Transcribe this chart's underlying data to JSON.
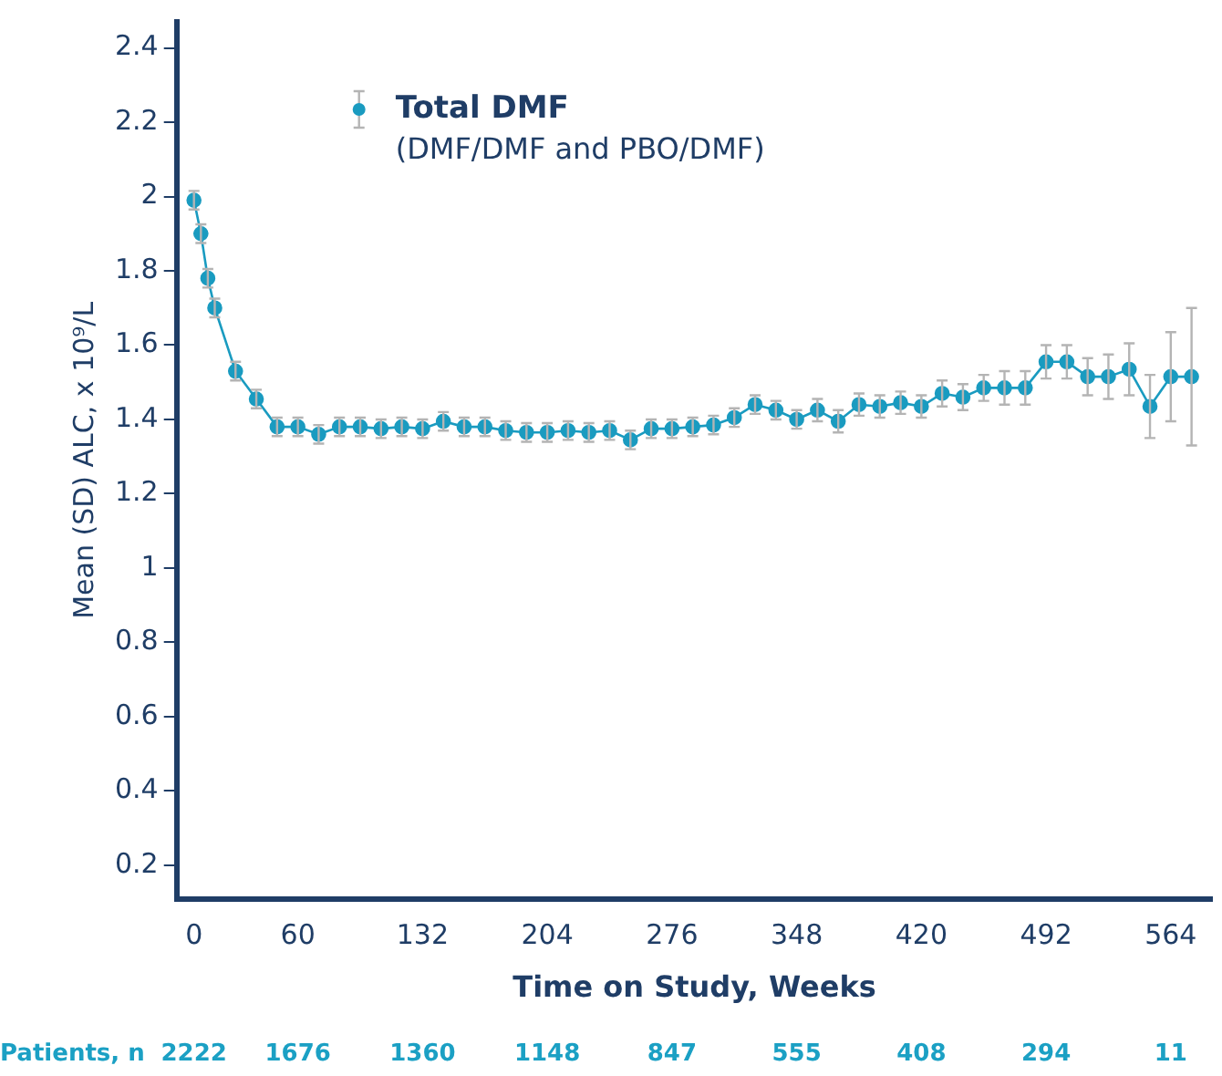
{
  "chart_data": {
    "type": "line",
    "xlabel": "Time on Study, Weeks",
    "ylabel": "Mean (SD) ALC, x 10⁹/L",
    "x": [
      0,
      4,
      8,
      12,
      24,
      36,
      48,
      60,
      72,
      84,
      96,
      108,
      120,
      132,
      144,
      156,
      168,
      180,
      192,
      204,
      216,
      228,
      240,
      252,
      264,
      276,
      288,
      300,
      312,
      324,
      336,
      348,
      360,
      372,
      384,
      396,
      408,
      420,
      432,
      444,
      456,
      468,
      480,
      492,
      504,
      516,
      528,
      540,
      552,
      564,
      576
    ],
    "series": [
      {
        "name": "Total DMF",
        "color": "#1a9bc0",
        "values": [
          1.99,
          1.9,
          1.78,
          1.7,
          1.53,
          1.455,
          1.38,
          1.38,
          1.36,
          1.38,
          1.38,
          1.375,
          1.38,
          1.375,
          1.395,
          1.38,
          1.38,
          1.37,
          1.365,
          1.365,
          1.37,
          1.365,
          1.37,
          1.345,
          1.375,
          1.375,
          1.38,
          1.385,
          1.405,
          1.44,
          1.425,
          1.4,
          1.425,
          1.395,
          1.44,
          1.435,
          1.445,
          1.435,
          1.47,
          1.46,
          1.485,
          1.485,
          1.485,
          1.555,
          1.555,
          1.515,
          1.515,
          1.535,
          1.435,
          1.515,
          1.515
        ],
        "errors": [
          0.025,
          0.025,
          0.025,
          0.025,
          0.025,
          0.025,
          0.025,
          0.025,
          0.025,
          0.025,
          0.025,
          0.025,
          0.025,
          0.025,
          0.025,
          0.025,
          0.025,
          0.025,
          0.025,
          0.025,
          0.025,
          0.025,
          0.025,
          0.025,
          0.025,
          0.025,
          0.025,
          0.025,
          0.025,
          0.025,
          0.025,
          0.025,
          0.03,
          0.03,
          0.03,
          0.03,
          0.03,
          0.03,
          0.035,
          0.035,
          0.035,
          0.045,
          0.045,
          0.045,
          0.045,
          0.05,
          0.06,
          0.07,
          0.085,
          0.12,
          0.185
        ]
      }
    ],
    "annotations": [
      "(DMF/DMF and PBO/DMF)",
      "Patients, n",
      "2222",
      "1676",
      "1360",
      "1148",
      "847",
      "555",
      "408",
      "294",
      "11"
    ],
    "xlim": [
      -10,
      588
    ],
    "xticks": [
      0,
      60,
      132,
      204,
      276,
      348,
      420,
      492,
      564
    ],
    "ylim": [
      0.11,
      2.47
    ],
    "yticks": [
      0.2,
      0.4,
      0.6,
      0.8,
      1.0,
      1.2,
      1.4,
      1.6,
      1.8,
      2.0,
      2.2,
      2.4
    ],
    "grid": false,
    "legend": "top left",
    "marker": "circle",
    "line_style": "solid"
  }
}
